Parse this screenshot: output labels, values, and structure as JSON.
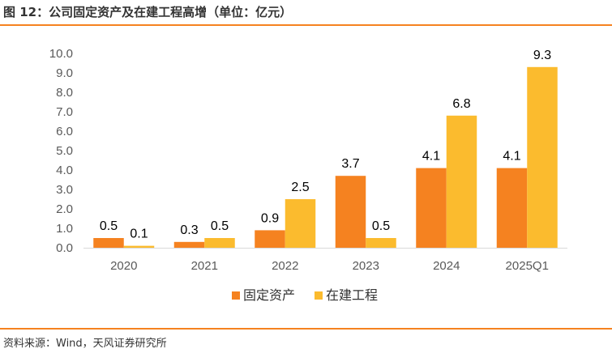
{
  "title": "图 12：公司固定资产及在建工程高增（单位：亿元）",
  "source": "资料来源：Wind，天风证券研究所",
  "colors": {
    "accent": "#F58220",
    "series1": "#F58220",
    "series2": "#FBBB2E"
  },
  "chart_data": {
    "type": "bar",
    "categories": [
      "2020",
      "2021",
      "2022",
      "2023",
      "2024",
      "2025Q1"
    ],
    "series": [
      {
        "name": "固定资产",
        "values": [
          0.5,
          0.3,
          0.9,
          3.7,
          4.1,
          4.1
        ],
        "color": "#F58220"
      },
      {
        "name": "在建工程",
        "values": [
          0.1,
          0.5,
          2.5,
          0.5,
          6.8,
          9.3
        ],
        "color": "#FBBB2E"
      }
    ],
    "yticks": [
      "0.0",
      "1.0",
      "2.0",
      "3.0",
      "4.0",
      "5.0",
      "6.0",
      "7.0",
      "8.0",
      "9.0",
      "10.0"
    ],
    "ylim": [
      0,
      10
    ],
    "grid": false,
    "legend": "bottom-center",
    "xlabel": "",
    "ylabel": ""
  }
}
